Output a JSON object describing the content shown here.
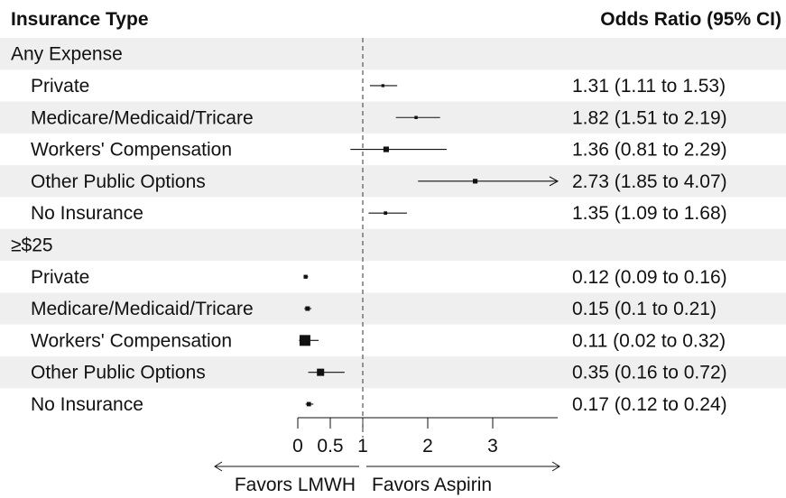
{
  "chart_data": {
    "type": "forest",
    "headers": {
      "left": "Insurance Type",
      "right": "Odds Ratio (95% CI)"
    },
    "xlim": [
      0,
      4
    ],
    "ref_line": 1,
    "ticks": [
      {
        "value": 0,
        "label": "0"
      },
      {
        "value": 0.5,
        "label": "0.5"
      },
      {
        "value": 1,
        "label": "1"
      },
      {
        "value": 2,
        "label": "2"
      },
      {
        "value": 3,
        "label": "3"
      }
    ],
    "direction_labels": {
      "left": "Favors LMWH",
      "right": "Favors Aspirin"
    },
    "groups": [
      {
        "label": "Any Expense",
        "rows": [
          {
            "label": "Private",
            "or": 1.31,
            "lo": 1.11,
            "hi": 1.53,
            "ci_text": "1.31 (1.11 to 1.53)"
          },
          {
            "label": "Medicare/Medicaid/Tricare",
            "or": 1.82,
            "lo": 1.51,
            "hi": 2.19,
            "ci_text": "1.82 (1.51 to 2.19)"
          },
          {
            "label": "Workers' Compensation",
            "or": 1.36,
            "lo": 0.81,
            "hi": 2.29,
            "ci_text": "1.36 (0.81 to 2.29)"
          },
          {
            "label": "Other Public Options",
            "or": 2.73,
            "lo": 1.85,
            "hi": 4.07,
            "ci_text": "2.73 (1.85 to 4.07)"
          },
          {
            "label": "No Insurance",
            "or": 1.35,
            "lo": 1.09,
            "hi": 1.68,
            "ci_text": "1.35 (1.09 to 1.68)"
          }
        ]
      },
      {
        "label": "≥$25",
        "rows": [
          {
            "label": "Private",
            "or": 0.12,
            "lo": 0.09,
            "hi": 0.16,
            "ci_text": "0.12 (0.09 to 0.16)"
          },
          {
            "label": "Medicare/Medicaid/Tricare",
            "or": 0.15,
            "lo": 0.1,
            "hi": 0.21,
            "ci_text": "0.15 (0.1 to 0.21)"
          },
          {
            "label": "Workers' Compensation",
            "or": 0.11,
            "lo": 0.02,
            "hi": 0.32,
            "ci_text": "0.11 (0.02 to 0.32)"
          },
          {
            "label": "Other Public Options",
            "or": 0.35,
            "lo": 0.16,
            "hi": 0.72,
            "ci_text": "0.35 (0.16 to 0.72)"
          },
          {
            "label": "No Insurance",
            "or": 0.17,
            "lo": 0.12,
            "hi": 0.24,
            "ci_text": "0.17 (0.12 to 0.24)"
          }
        ]
      }
    ],
    "colors": {
      "stripe": "#efefef",
      "ink": "#111111",
      "refline": "#555555"
    }
  }
}
